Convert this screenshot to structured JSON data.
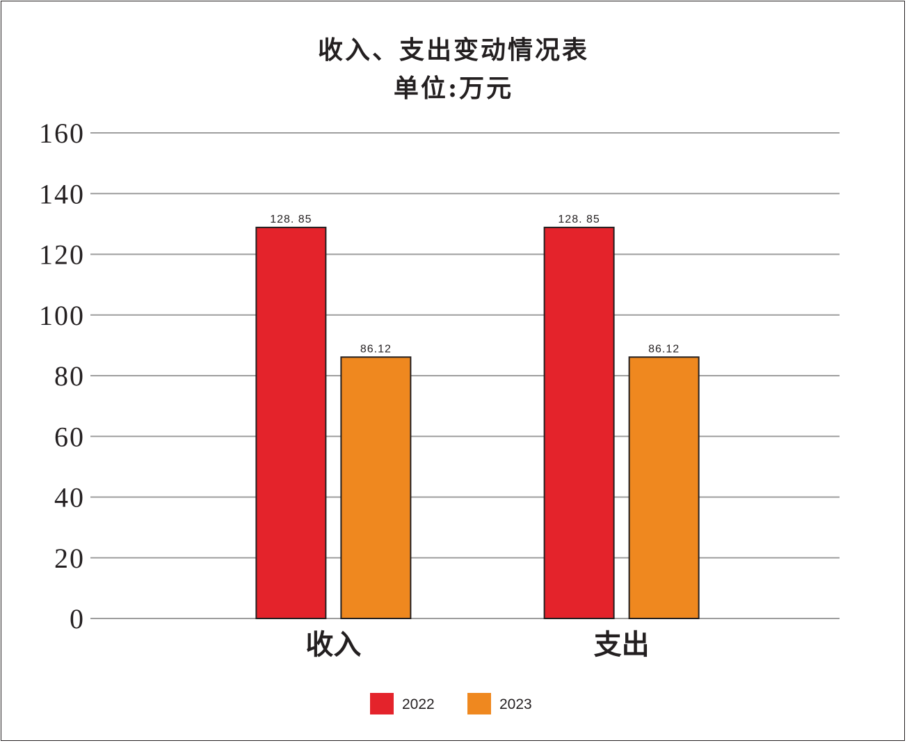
{
  "chart_data": {
    "type": "bar",
    "title": "收入、支出变动情况表",
    "subtitle": "单位:万元",
    "categories": [
      "收入",
      "支出"
    ],
    "series": [
      {
        "name": "2022",
        "values": [
          128.85,
          128.85
        ],
        "labels": [
          "128. 85",
          "128. 85"
        ],
        "color": "#e4232b"
      },
      {
        "name": "2023",
        "values": [
          86.12,
          86.12
        ],
        "labels": [
          "86.12",
          "86.12"
        ],
        "color": "#ef881f"
      }
    ],
    "yticks": [
      0,
      20,
      40,
      60,
      80,
      100,
      120,
      140,
      160
    ],
    "ylim": [
      0,
      160
    ],
    "grid": true,
    "legend_position": "bottom-center",
    "colors": {
      "grid": "#9d9d9d",
      "text": "#231f20",
      "bar_border": "#231f20"
    }
  }
}
